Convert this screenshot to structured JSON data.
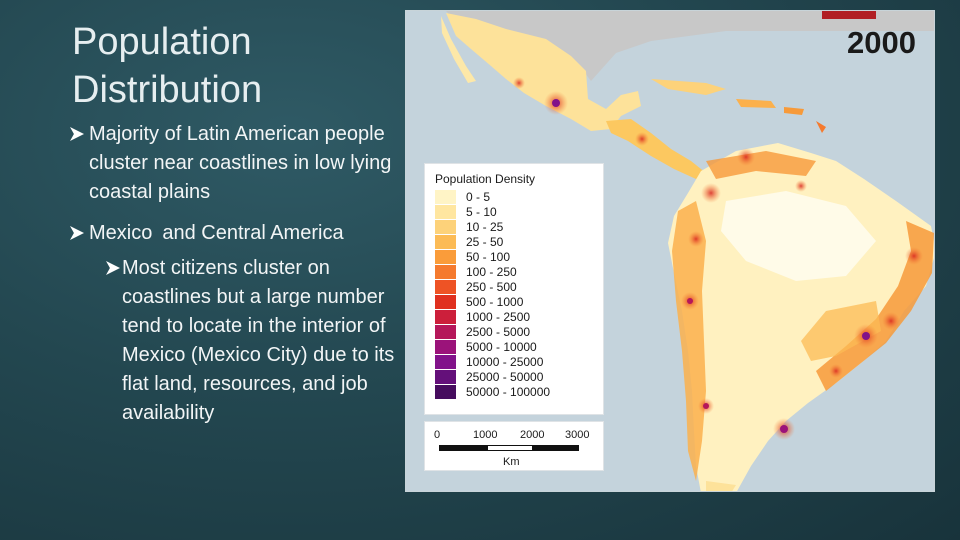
{
  "slide": {
    "title_line1": "Population",
    "title_line2": "Distribution",
    "bullet1": "Majority of Latin American people cluster near coastlines in low lying coastal plains",
    "bullet2_part1": "Mexico",
    "bullet2_part2": "and  Central America",
    "bullet3": "Most citizens cluster on coastlines but a large number tend to locate in the interior of Mexico (Mexico City) due to its flat land, resources, and job availability"
  },
  "map": {
    "year": "2000",
    "legend_title": "Population Density",
    "legend": [
      {
        "label": "0 - 5",
        "color": "#fff4c6"
      },
      {
        "label": "5 - 10",
        "color": "#ffe6a0"
      },
      {
        "label": "10 - 25",
        "color": "#fdd27a"
      },
      {
        "label": "25 - 50",
        "color": "#fcbb55"
      },
      {
        "label": "50 - 100",
        "color": "#fa9c3a"
      },
      {
        "label": "100 - 250",
        "color": "#f57a2e"
      },
      {
        "label": "250 - 500",
        "color": "#ee5325"
      },
      {
        "label": "500 - 1000",
        "color": "#e0301f"
      },
      {
        "label": "1000 - 2500",
        "color": "#cc1f3b"
      },
      {
        "label": "2500 - 5000",
        "color": "#b5175a"
      },
      {
        "label": "5000 - 10000",
        "color": "#9b137a"
      },
      {
        "label": "10000 - 25000",
        "color": "#82128a"
      },
      {
        "label": "25000 - 50000",
        "color": "#64107a"
      },
      {
        "label": "50000 - 100000",
        "color": "#460c5e"
      }
    ],
    "scale_ticks": [
      "0",
      "1000",
      "2000",
      "3000"
    ],
    "scale_unit": "Km"
  }
}
